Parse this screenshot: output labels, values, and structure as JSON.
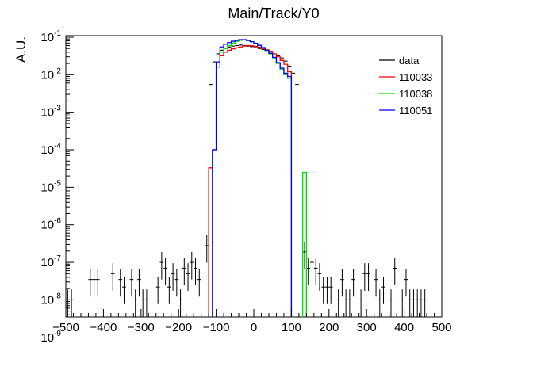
{
  "chart_data": {
    "type": "histogram",
    "title": "Main/Track/Y0",
    "ylabel": "A.U.",
    "xlabel": "",
    "yscale": "log",
    "xlim": [
      -500,
      500
    ],
    "ylim": [
      3.5e-09,
      0.11
    ],
    "x_ticks": [
      "−500",
      "−400",
      "−300",
      "−200",
      "−100",
      "0",
      "100",
      "200",
      "300",
      "400",
      "500"
    ],
    "x_tick_values": [
      -500,
      -400,
      -300,
      -200,
      -100,
      0,
      100,
      200,
      300,
      400,
      500
    ],
    "legend": {
      "position": "top-right",
      "entries": [
        {
          "name": "data",
          "color": "#000000"
        },
        {
          "name": "110033",
          "color": "#ff0000"
        },
        {
          "name": "110038",
          "color": "#00dd00"
        },
        {
          "name": "110051",
          "color": "#0000ff"
        }
      ]
    },
    "bin_width": 10,
    "series": [
      {
        "name": "data",
        "color": "#000000",
        "style": "points",
        "x": [
          -495,
          -485,
          -435,
          -425,
          -415,
          -375,
          -355,
          -345,
          -325,
          -315,
          -305,
          -295,
          -285,
          -255,
          -245,
          -235,
          -225,
          -215,
          -205,
          -195,
          -185,
          -175,
          -165,
          -155,
          -145,
          -125,
          -115,
          -105,
          -95,
          -85,
          -75,
          -65,
          -55,
          -45,
          -35,
          -25,
          -15,
          -5,
          5,
          15,
          25,
          35,
          45,
          55,
          65,
          75,
          85,
          95,
          105,
          115,
          135,
          145,
          155,
          165,
          175,
          185,
          195,
          205,
          225,
          235,
          245,
          255,
          265,
          285,
          295,
          305,
          325,
          335,
          345,
          365,
          375,
          395,
          405,
          415,
          425,
          435,
          445,
          455
        ],
        "y": [
          1e-08,
          1e-08,
          3.5e-08,
          3.5e-08,
          3.5e-08,
          5e-08,
          3.5e-08,
          2.2e-08,
          3.5e-08,
          1e-08,
          3.5e-08,
          1e-08,
          1e-08,
          2.2e-08,
          1e-07,
          7e-08,
          2.2e-08,
          5e-08,
          3.5e-08,
          1e-08,
          7e-08,
          5e-08,
          1e-07,
          7e-08,
          3.5e-08,
          2.8e-07,
          0.0055,
          0.022,
          0.036,
          0.045,
          0.05,
          0.055,
          0.058,
          0.06,
          0.062,
          0.06,
          0.058,
          0.056,
          0.053,
          0.05,
          0.047,
          0.044,
          0.04,
          0.036,
          0.032,
          0.028,
          0.023,
          0.017,
          0.011,
          0.0055,
          1.9e-07,
          7e-08,
          1e-07,
          7e-08,
          5e-08,
          2.2e-08,
          2.2e-08,
          2.2e-08,
          1e-08,
          3.5e-08,
          1e-08,
          1e-08,
          3.5e-08,
          1e-08,
          5e-08,
          5e-08,
          3.5e-08,
          1e-08,
          2.2e-08,
          1e-08,
          7e-08,
          1e-08,
          3.5e-08,
          1e-08,
          1e-08,
          1e-08,
          1e-08,
          1e-08
        ]
      },
      {
        "name": "110033",
        "color": "#ff0000",
        "style": "step",
        "x": [
          -115,
          -105,
          -95,
          -85,
          -75,
          -65,
          -55,
          -45,
          -35,
          -25,
          -15,
          -5,
          5,
          15,
          25,
          35,
          45,
          55,
          65,
          75,
          85,
          95
        ],
        "y": [
          3.3e-05,
          0.0001,
          0.016,
          0.032,
          0.04,
          0.045,
          0.049,
          0.052,
          0.055,
          0.058,
          0.06,
          0.059,
          0.057,
          0.054,
          0.05,
          0.046,
          0.042,
          0.036,
          0.03,
          0.024,
          0.019,
          0.012
        ]
      },
      {
        "name": "110038",
        "color": "#00dd00",
        "style": "step",
        "x": [
          -105,
          -95,
          -85,
          -75,
          -65,
          -55,
          -45,
          -35,
          -25,
          -15,
          -5,
          5,
          15,
          25,
          35,
          45,
          55,
          65,
          75,
          85,
          95,
          135
        ],
        "y": [
          0.0001,
          0.016,
          0.04,
          0.05,
          0.06,
          0.07,
          0.078,
          0.083,
          0.085,
          0.082,
          0.076,
          0.068,
          0.06,
          0.052,
          0.044,
          0.036,
          0.028,
          0.02,
          0.014,
          0.01,
          0.008,
          2.5e-05
        ]
      },
      {
        "name": "110051",
        "color": "#0000ff",
        "style": "step",
        "x": [
          -105,
          -95,
          -85,
          -75,
          -65,
          -55,
          -45,
          -35,
          -25,
          -15,
          -5,
          5,
          15,
          25,
          35,
          45,
          55,
          65,
          75,
          85,
          95
        ],
        "y": [
          0.0001,
          0.022,
          0.055,
          0.065,
          0.072,
          0.078,
          0.083,
          0.086,
          0.086,
          0.082,
          0.076,
          0.069,
          0.061,
          0.053,
          0.045,
          0.037,
          0.029,
          0.021,
          0.015,
          0.011,
          0.009
        ]
      }
    ]
  }
}
